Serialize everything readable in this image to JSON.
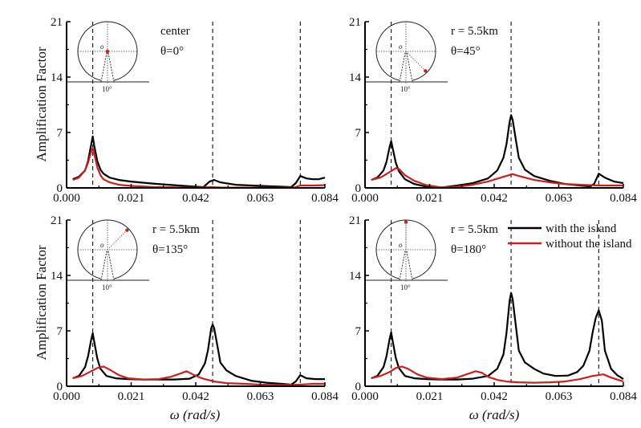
{
  "chart_data": [
    {
      "type": "line",
      "panel": "top-left",
      "annotation": [
        "center",
        "θ=0°"
      ],
      "inset_point_angle_deg": 0,
      "inset_point_position": "center",
      "xlim": [
        0,
        0.084
      ],
      "ylim": [
        0,
        21
      ],
      "xticks": [
        "0.000",
        "0.021",
        "0.042",
        "0.063",
        "0.084"
      ],
      "yticks": [
        "0",
        "7",
        "14",
        "21"
      ],
      "xlabel": "",
      "ylabel": "Amplification Factor",
      "resonance_lines": [
        0.0085,
        0.0475,
        0.076
      ],
      "series": [
        {
          "name": "with the island",
          "color": "#000000",
          "x": [
            0.002,
            0.004,
            0.006,
            0.007,
            0.008,
            0.0085,
            0.009,
            0.01,
            0.011,
            0.012,
            0.014,
            0.017,
            0.021,
            0.028,
            0.035,
            0.042,
            0.0445,
            0.0465,
            0.048,
            0.05,
            0.055,
            0.063,
            0.07,
            0.073,
            0.0745,
            0.076,
            0.078,
            0.08,
            0.082,
            0.084
          ],
          "y": [
            1.1,
            1.4,
            2.2,
            3.4,
            5.5,
            6.5,
            5.3,
            3.4,
            2.3,
            1.8,
            1.3,
            1.0,
            0.8,
            0.55,
            0.35,
            0.15,
            0.1,
            0.8,
            1.0,
            0.7,
            0.4,
            0.25,
            0.15,
            0.1,
            0.6,
            1.5,
            1.2,
            1.1,
            1.1,
            1.3
          ]
        },
        {
          "name": "without the island",
          "color": "#cc1f1f",
          "x": [
            0.002,
            0.004,
            0.006,
            0.007,
            0.008,
            0.0085,
            0.009,
            0.01,
            0.011,
            0.012,
            0.014,
            0.017,
            0.021,
            0.028,
            0.035,
            0.042,
            0.047,
            0.05,
            0.055,
            0.063,
            0.07,
            0.074,
            0.076,
            0.08,
            0.084
          ],
          "y": [
            1.0,
            1.3,
            2.2,
            3.2,
            4.6,
            5.0,
            4.3,
            2.6,
            1.6,
            1.1,
            0.7,
            0.4,
            0.25,
            0.12,
            0.06,
            0.03,
            0.1,
            0.05,
            0.04,
            0.03,
            0.03,
            0.05,
            0.3,
            0.3,
            0.35
          ]
        }
      ]
    },
    {
      "type": "line",
      "panel": "top-right",
      "annotation": [
        "r = 5.5km",
        "θ=45°"
      ],
      "inset_point_angle_deg": 45,
      "xlim": [
        0,
        0.084
      ],
      "ylim": [
        0,
        21
      ],
      "xticks": [
        "0.000",
        "0.021",
        "0.042",
        "0.063",
        "0.084"
      ],
      "yticks": [
        "0",
        "7",
        "14",
        "21"
      ],
      "xlabel": "",
      "ylabel": "",
      "resonance_lines": [
        0.0085,
        0.0475,
        0.076
      ],
      "series": [
        {
          "name": "with the island",
          "color": "#000000",
          "x": [
            0.002,
            0.004,
            0.006,
            0.007,
            0.008,
            0.0085,
            0.009,
            0.01,
            0.011,
            0.013,
            0.016,
            0.02,
            0.025,
            0.03,
            0.035,
            0.04,
            0.043,
            0.045,
            0.046,
            0.047,
            0.0475,
            0.048,
            0.049,
            0.05,
            0.052,
            0.055,
            0.06,
            0.065,
            0.07,
            0.073,
            0.0745,
            0.076,
            0.078,
            0.081,
            0.084
          ],
          "y": [
            1.0,
            1.3,
            2.2,
            3.3,
            5.2,
            5.9,
            5.0,
            3.2,
            2.1,
            1.1,
            0.5,
            0.15,
            0.05,
            0.3,
            0.6,
            1.2,
            2.2,
            3.8,
            5.5,
            8.3,
            9.2,
            8.6,
            6.2,
            3.8,
            2.3,
            1.5,
            0.9,
            0.5,
            0.3,
            0.2,
            0.5,
            1.8,
            1.3,
            0.8,
            0.6
          ]
        },
        {
          "name": "without the island",
          "color": "#cc1f1f",
          "x": [
            0.002,
            0.005,
            0.008,
            0.01,
            0.011,
            0.013,
            0.016,
            0.02,
            0.025,
            0.03,
            0.035,
            0.04,
            0.045,
            0.048,
            0.05,
            0.055,
            0.06,
            0.065,
            0.07,
            0.076,
            0.08,
            0.084
          ],
          "y": [
            1.0,
            1.3,
            2.0,
            2.5,
            2.4,
            1.6,
            0.9,
            0.35,
            0.05,
            0.15,
            0.4,
            0.8,
            1.4,
            1.75,
            1.5,
            1.0,
            0.7,
            0.5,
            0.4,
            0.3,
            0.3,
            0.3
          ]
        }
      ]
    },
    {
      "type": "line",
      "panel": "bottom-left",
      "annotation": [
        "r = 5.5km",
        "θ=135°"
      ],
      "inset_point_angle_deg": 135,
      "xlim": [
        0,
        0.084
      ],
      "ylim": [
        0,
        21
      ],
      "xticks": [
        "0.000",
        "0.021",
        "0.042",
        "0.063",
        "0.084"
      ],
      "yticks": [
        "0",
        "7",
        "14",
        "21"
      ],
      "xlabel": "ω (rad/s)",
      "ylabel": "Amplification Factor",
      "resonance_lines": [
        0.0085,
        0.0475,
        0.076
      ],
      "series": [
        {
          "name": "with the island",
          "color": "#000000",
          "x": [
            0.002,
            0.004,
            0.006,
            0.007,
            0.008,
            0.0085,
            0.009,
            0.01,
            0.011,
            0.013,
            0.016,
            0.02,
            0.025,
            0.03,
            0.035,
            0.04,
            0.043,
            0.045,
            0.046,
            0.047,
            0.0475,
            0.048,
            0.049,
            0.05,
            0.052,
            0.055,
            0.06,
            0.065,
            0.07,
            0.073,
            0.0745,
            0.076,
            0.078,
            0.081,
            0.084
          ],
          "y": [
            1.0,
            1.3,
            2.4,
            3.8,
            5.9,
            6.7,
            5.6,
            3.5,
            2.2,
            1.3,
            1.0,
            0.9,
            0.85,
            0.85,
            0.85,
            0.95,
            1.5,
            2.9,
            4.6,
            7.3,
            7.8,
            7.3,
            5.2,
            3.0,
            2.0,
            1.3,
            0.7,
            0.45,
            0.3,
            0.2,
            0.6,
            1.4,
            1.0,
            0.9,
            0.9
          ]
        },
        {
          "name": "without the island",
          "color": "#cc1f1f",
          "x": [
            0.002,
            0.005,
            0.008,
            0.01,
            0.012,
            0.014,
            0.017,
            0.02,
            0.025,
            0.03,
            0.034,
            0.037,
            0.039,
            0.041,
            0.044,
            0.048,
            0.052,
            0.058,
            0.063,
            0.07,
            0.076,
            0.08,
            0.084
          ],
          "y": [
            1.0,
            1.3,
            1.9,
            2.3,
            2.5,
            2.1,
            1.4,
            1.0,
            0.85,
            0.9,
            1.2,
            1.6,
            1.9,
            1.5,
            1.0,
            0.6,
            0.4,
            0.3,
            0.2,
            0.15,
            0.2,
            0.3,
            0.3
          ]
        }
      ]
    },
    {
      "type": "line",
      "panel": "bottom-right",
      "annotation": [
        "r = 5.5km",
        "θ=180°"
      ],
      "inset_point_angle_deg": 180,
      "xlim": [
        0,
        0.084
      ],
      "ylim": [
        0,
        21
      ],
      "xticks": [
        "0.000",
        "0.021",
        "0.042",
        "0.063",
        "0.084"
      ],
      "yticks": [
        "0",
        "7",
        "14",
        "21"
      ],
      "xlabel": "ω (rad/s)",
      "ylabel": "",
      "resonance_lines": [
        0.0085,
        0.0475,
        0.076
      ],
      "legend": {
        "placement": "top-right",
        "entries": [
          {
            "label": "with the island",
            "color": "#000000"
          },
          {
            "label": "without the island",
            "color": "#cc1f1f"
          }
        ]
      },
      "series": [
        {
          "name": "with the island",
          "color": "#000000",
          "x": [
            0.002,
            0.004,
            0.006,
            0.007,
            0.008,
            0.0085,
            0.009,
            0.01,
            0.011,
            0.013,
            0.016,
            0.02,
            0.025,
            0.03,
            0.035,
            0.04,
            0.043,
            0.045,
            0.046,
            0.047,
            0.0475,
            0.048,
            0.049,
            0.05,
            0.052,
            0.055,
            0.058,
            0.062,
            0.066,
            0.069,
            0.071,
            0.073,
            0.074,
            0.075,
            0.076,
            0.077,
            0.078,
            0.08,
            0.082,
            0.084
          ],
          "y": [
            1.0,
            1.3,
            2.4,
            3.8,
            6.0,
            6.8,
            5.7,
            3.6,
            2.3,
            1.3,
            1.0,
            0.9,
            0.85,
            0.85,
            0.95,
            1.3,
            2.2,
            4.0,
            6.7,
            10.8,
            11.8,
            11.0,
            7.8,
            4.5,
            3.0,
            2.2,
            1.6,
            1.3,
            1.35,
            1.8,
            2.6,
            4.5,
            6.8,
            8.6,
            9.6,
            8.3,
            4.5,
            2.2,
            1.4,
            0.9
          ]
        },
        {
          "name": "without the island",
          "color": "#cc1f1f",
          "x": [
            0.002,
            0.005,
            0.008,
            0.01,
            0.012,
            0.014,
            0.017,
            0.02,
            0.025,
            0.03,
            0.033,
            0.036,
            0.038,
            0.04,
            0.043,
            0.046,
            0.05,
            0.055,
            0.06,
            0.065,
            0.07,
            0.074,
            0.0775,
            0.08,
            0.084
          ],
          "y": [
            1.0,
            1.3,
            1.8,
            2.3,
            2.5,
            2.2,
            1.5,
            1.1,
            0.9,
            1.1,
            1.5,
            1.9,
            1.7,
            1.2,
            0.8,
            0.6,
            0.5,
            0.45,
            0.5,
            0.6,
            0.9,
            1.3,
            1.5,
            1.1,
            0.6
          ]
        }
      ]
    }
  ]
}
